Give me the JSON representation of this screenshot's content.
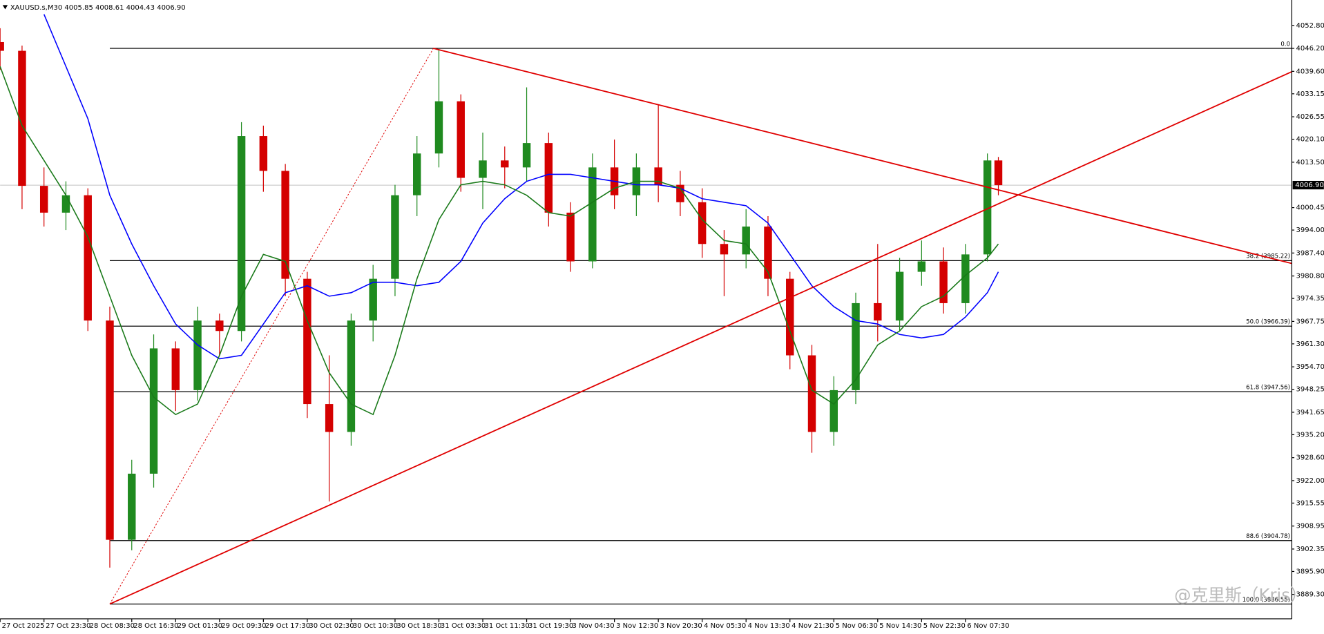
{
  "chart_data": {
    "type": "candlestick",
    "title": "XAUUSD.s,M30  4005.85 4008.61 4004.43 4006.90",
    "watermark": "@克里斯（Kris）",
    "up_color": "#1f8a1f",
    "down_color": "#d40000",
    "x": [
      0,
      8,
      16,
      24,
      32,
      40,
      48,
      56,
      64,
      72,
      80,
      88,
      96,
      104,
      112,
      120,
      128,
      136,
      144,
      152,
      160,
      168,
      176,
      184,
      192,
      200,
      208,
      216,
      224,
      232,
      240,
      248,
      256,
      264,
      272,
      280,
      288,
      296,
      304,
      312,
      320,
      328,
      336,
      344,
      352,
      360,
      364
    ],
    "open": [
      4048,
      4045.5,
      4006.7,
      3999,
      4004,
      3968,
      3905,
      3924,
      3960,
      3948,
      3968,
      3965,
      4021,
      4011,
      3980,
      3944,
      3936,
      3968,
      3980,
      4004,
      4016,
      4031,
      4009,
      4014,
      4012,
      4019,
      3999,
      3985,
      4012,
      4004,
      4012,
      4007,
      4002,
      3990,
      3987,
      3995,
      3980,
      3958,
      3936,
      3948,
      3973,
      3968,
      3982,
      3985,
      3973,
      3987,
      4014
    ],
    "high": [
      4052,
      4047,
      4012,
      4008,
      4006,
      3972,
      3928,
      3964,
      3962,
      3972,
      3970,
      4025,
      4024,
      4013,
      3982,
      3958,
      3970,
      3984,
      4007,
      4021,
      4046,
      4033,
      4022,
      4018,
      4035,
      4022,
      4002,
      4016,
      4020,
      4016,
      4030,
      4011,
      4006,
      3994,
      4000,
      3998,
      3982,
      3961,
      3952,
      3976,
      3990,
      3986,
      3991,
      3989,
      3990,
      4016,
      4015
    ],
    "low": [
      4040,
      4000,
      3995,
      3994,
      3965,
      3897,
      3902,
      3920,
      3942,
      3945,
      3958,
      3962,
      4005,
      3975,
      3940,
      3916,
      3932,
      3962,
      3975,
      3998,
      4012,
      4005,
      4000,
      4006,
      4008,
      3995,
      3982,
      3983,
      4000,
      3998,
      4002,
      3998,
      3986,
      3975,
      3983,
      3975,
      3954,
      3930,
      3932,
      3944,
      3962,
      3965,
      3978,
      3970,
      3970,
      3985,
      4004
    ],
    "close": [
      4045.5,
      4006.7,
      3999,
      4004,
      3968,
      3905,
      3924,
      3960,
      3948,
      3968,
      3965,
      4021,
      4011,
      3980,
      3944,
      3936,
      3968,
      3980,
      4004,
      4016,
      4031,
      4009,
      4014,
      4012,
      4019,
      3999,
      3985,
      4012,
      4004,
      4012,
      4007,
      4002,
      3990,
      3987,
      3995,
      3980,
      3958,
      3936,
      3948,
      3973,
      3968,
      3982,
      3985,
      3973,
      3987,
      4014,
      4006.9
    ],
    "series": [
      {
        "color": "#0000ff",
        "values": [
          null,
          null,
          4056,
          4041,
          4026,
          4004,
          3990,
          3978,
          3967,
          3961,
          3957,
          3958,
          3967,
          3976,
          3978,
          3975,
          3976,
          3979,
          3979,
          3978,
          3979,
          3985,
          3996,
          4003,
          4008,
          4010,
          4010,
          4009,
          4008,
          4007,
          4007,
          4006,
          4003,
          4002,
          4001,
          3996,
          3987,
          3978,
          3972,
          3968,
          3967,
          3964,
          3963,
          3964,
          3969,
          3976,
          3982
        ]
      },
      {
        "color": "#1a7a1a",
        "values": [
          4041,
          4024,
          4014,
          4004,
          3992,
          3975,
          3958,
          3946,
          3941,
          3944,
          3958,
          3975,
          3987,
          3985,
          3968,
          3953,
          3944,
          3941,
          3958,
          3980,
          3997,
          4007,
          4008,
          4007,
          4004,
          3999,
          3998,
          4002,
          4006,
          4008,
          4008,
          4006,
          3997,
          3991,
          3990,
          3982,
          3965,
          3948,
          3944,
          3951,
          3961,
          3965,
          3972,
          3975,
          3981,
          3986,
          3990
        ]
      }
    ],
    "trendlines": [
      {
        "color": "#e00000",
        "x": [
          158,
          471
        ],
        "y": [
          4046.2,
          3984.4
        ]
      },
      {
        "color": "#e00000",
        "x": [
          40,
          471
        ],
        "y": [
          3886.55,
          4039.5
        ]
      }
    ],
    "fib_anchor": {
      "color": "#e00000",
      "x": [
        40,
        158
      ],
      "y": [
        3886.55,
        4046.2
      ]
    },
    "fib_levels": [
      {
        "value": 4046.2,
        "label": "0.0"
      },
      {
        "value": 3985.22,
        "label": "38.2 (3985.22)"
      },
      {
        "value": 3966.39,
        "label": "50.0 (3966.39)"
      },
      {
        "value": 3947.56,
        "label": "61.8 (3947.56)"
      },
      {
        "value": 3904.78,
        "label": "88.6 (3904.78)"
      },
      {
        "value": 3886.55,
        "label": "100.0 (3886.55)"
      }
    ],
    "last_price": {
      "value": 4006.9,
      "label": "4006.90"
    },
    "xlim": [
      0,
      471
    ],
    "ylim": [
      3882.3,
      4060.1
    ],
    "xticks": [
      {
        "value": 0,
        "label": "27 Oct 2025"
      },
      {
        "value": 16,
        "label": "27 Oct 23:30"
      },
      {
        "value": 32,
        "label": "28 Oct 08:30"
      },
      {
        "value": 48,
        "label": "28 Oct 16:30"
      },
      {
        "value": 64,
        "label": "29 Oct 01:30"
      },
      {
        "value": 80,
        "label": "29 Oct 09:30"
      },
      {
        "value": 96,
        "label": "29 Oct 17:30"
      },
      {
        "value": 112,
        "label": "30 Oct 02:30"
      },
      {
        "value": 128,
        "label": "30 Oct 10:30"
      },
      {
        "value": 144,
        "label": "30 Oct 18:30"
      },
      {
        "value": 160,
        "label": "31 Oct 03:30"
      },
      {
        "value": 176,
        "label": "31 Oct 11:30"
      },
      {
        "value": 192,
        "label": "31 Oct 19:30"
      },
      {
        "value": 208,
        "label": "3 Nov 04:30"
      },
      {
        "value": 224,
        "label": "3 Nov 12:30"
      },
      {
        "value": 240,
        "label": "3 Nov 20:30"
      },
      {
        "value": 256,
        "label": "4 Nov 05:30"
      },
      {
        "value": 272,
        "label": "4 Nov 13:30"
      },
      {
        "value": 288,
        "label": "4 Nov 21:30"
      },
      {
        "value": 304,
        "label": "5 Nov 06:30"
      },
      {
        "value": 320,
        "label": "5 Nov 14:30"
      },
      {
        "value": 336,
        "label": "5 Nov 22:30"
      },
      {
        "value": 352,
        "label": "6 Nov 07:30"
      }
    ],
    "yticks": [
      {
        "value": 4052.8,
        "label": "4052.80"
      },
      {
        "value": 4046.2,
        "label": "4046.20"
      },
      {
        "value": 4039.6,
        "label": "4039.60"
      },
      {
        "value": 4033.15,
        "label": "4033.15"
      },
      {
        "value": 4026.55,
        "label": "4026.55"
      },
      {
        "value": 4020.1,
        "label": "4020.10"
      },
      {
        "value": 4013.5,
        "label": "4013.50"
      },
      {
        "value": 4000.45,
        "label": "4000.45"
      },
      {
        "value": 3994,
        "label": "3994.00"
      },
      {
        "value": 3987.4,
        "label": "3987.40"
      },
      {
        "value": 3980.8,
        "label": "3980.80"
      },
      {
        "value": 3974.35,
        "label": "3974.35"
      },
      {
        "value": 3967.75,
        "label": "3967.75"
      },
      {
        "value": 3961.3,
        "label": "3961.30"
      },
      {
        "value": 3954.7,
        "label": "3954.70"
      },
      {
        "value": 3948.25,
        "label": "3948.25"
      },
      {
        "value": 3941.65,
        "label": "3941.65"
      },
      {
        "value": 3935.2,
        "label": "3935.20"
      },
      {
        "value": 3928.6,
        "label": "3928.60"
      },
      {
        "value": 3922,
        "label": "3922.00"
      },
      {
        "value": 3915.55,
        "label": "3915.55"
      },
      {
        "value": 3908.95,
        "label": "3908.95"
      },
      {
        "value": 3902.35,
        "label": "3902.35"
      },
      {
        "value": 3895.9,
        "label": "3895.90"
      },
      {
        "value": 3889.3,
        "label": "3889.30"
      }
    ]
  }
}
